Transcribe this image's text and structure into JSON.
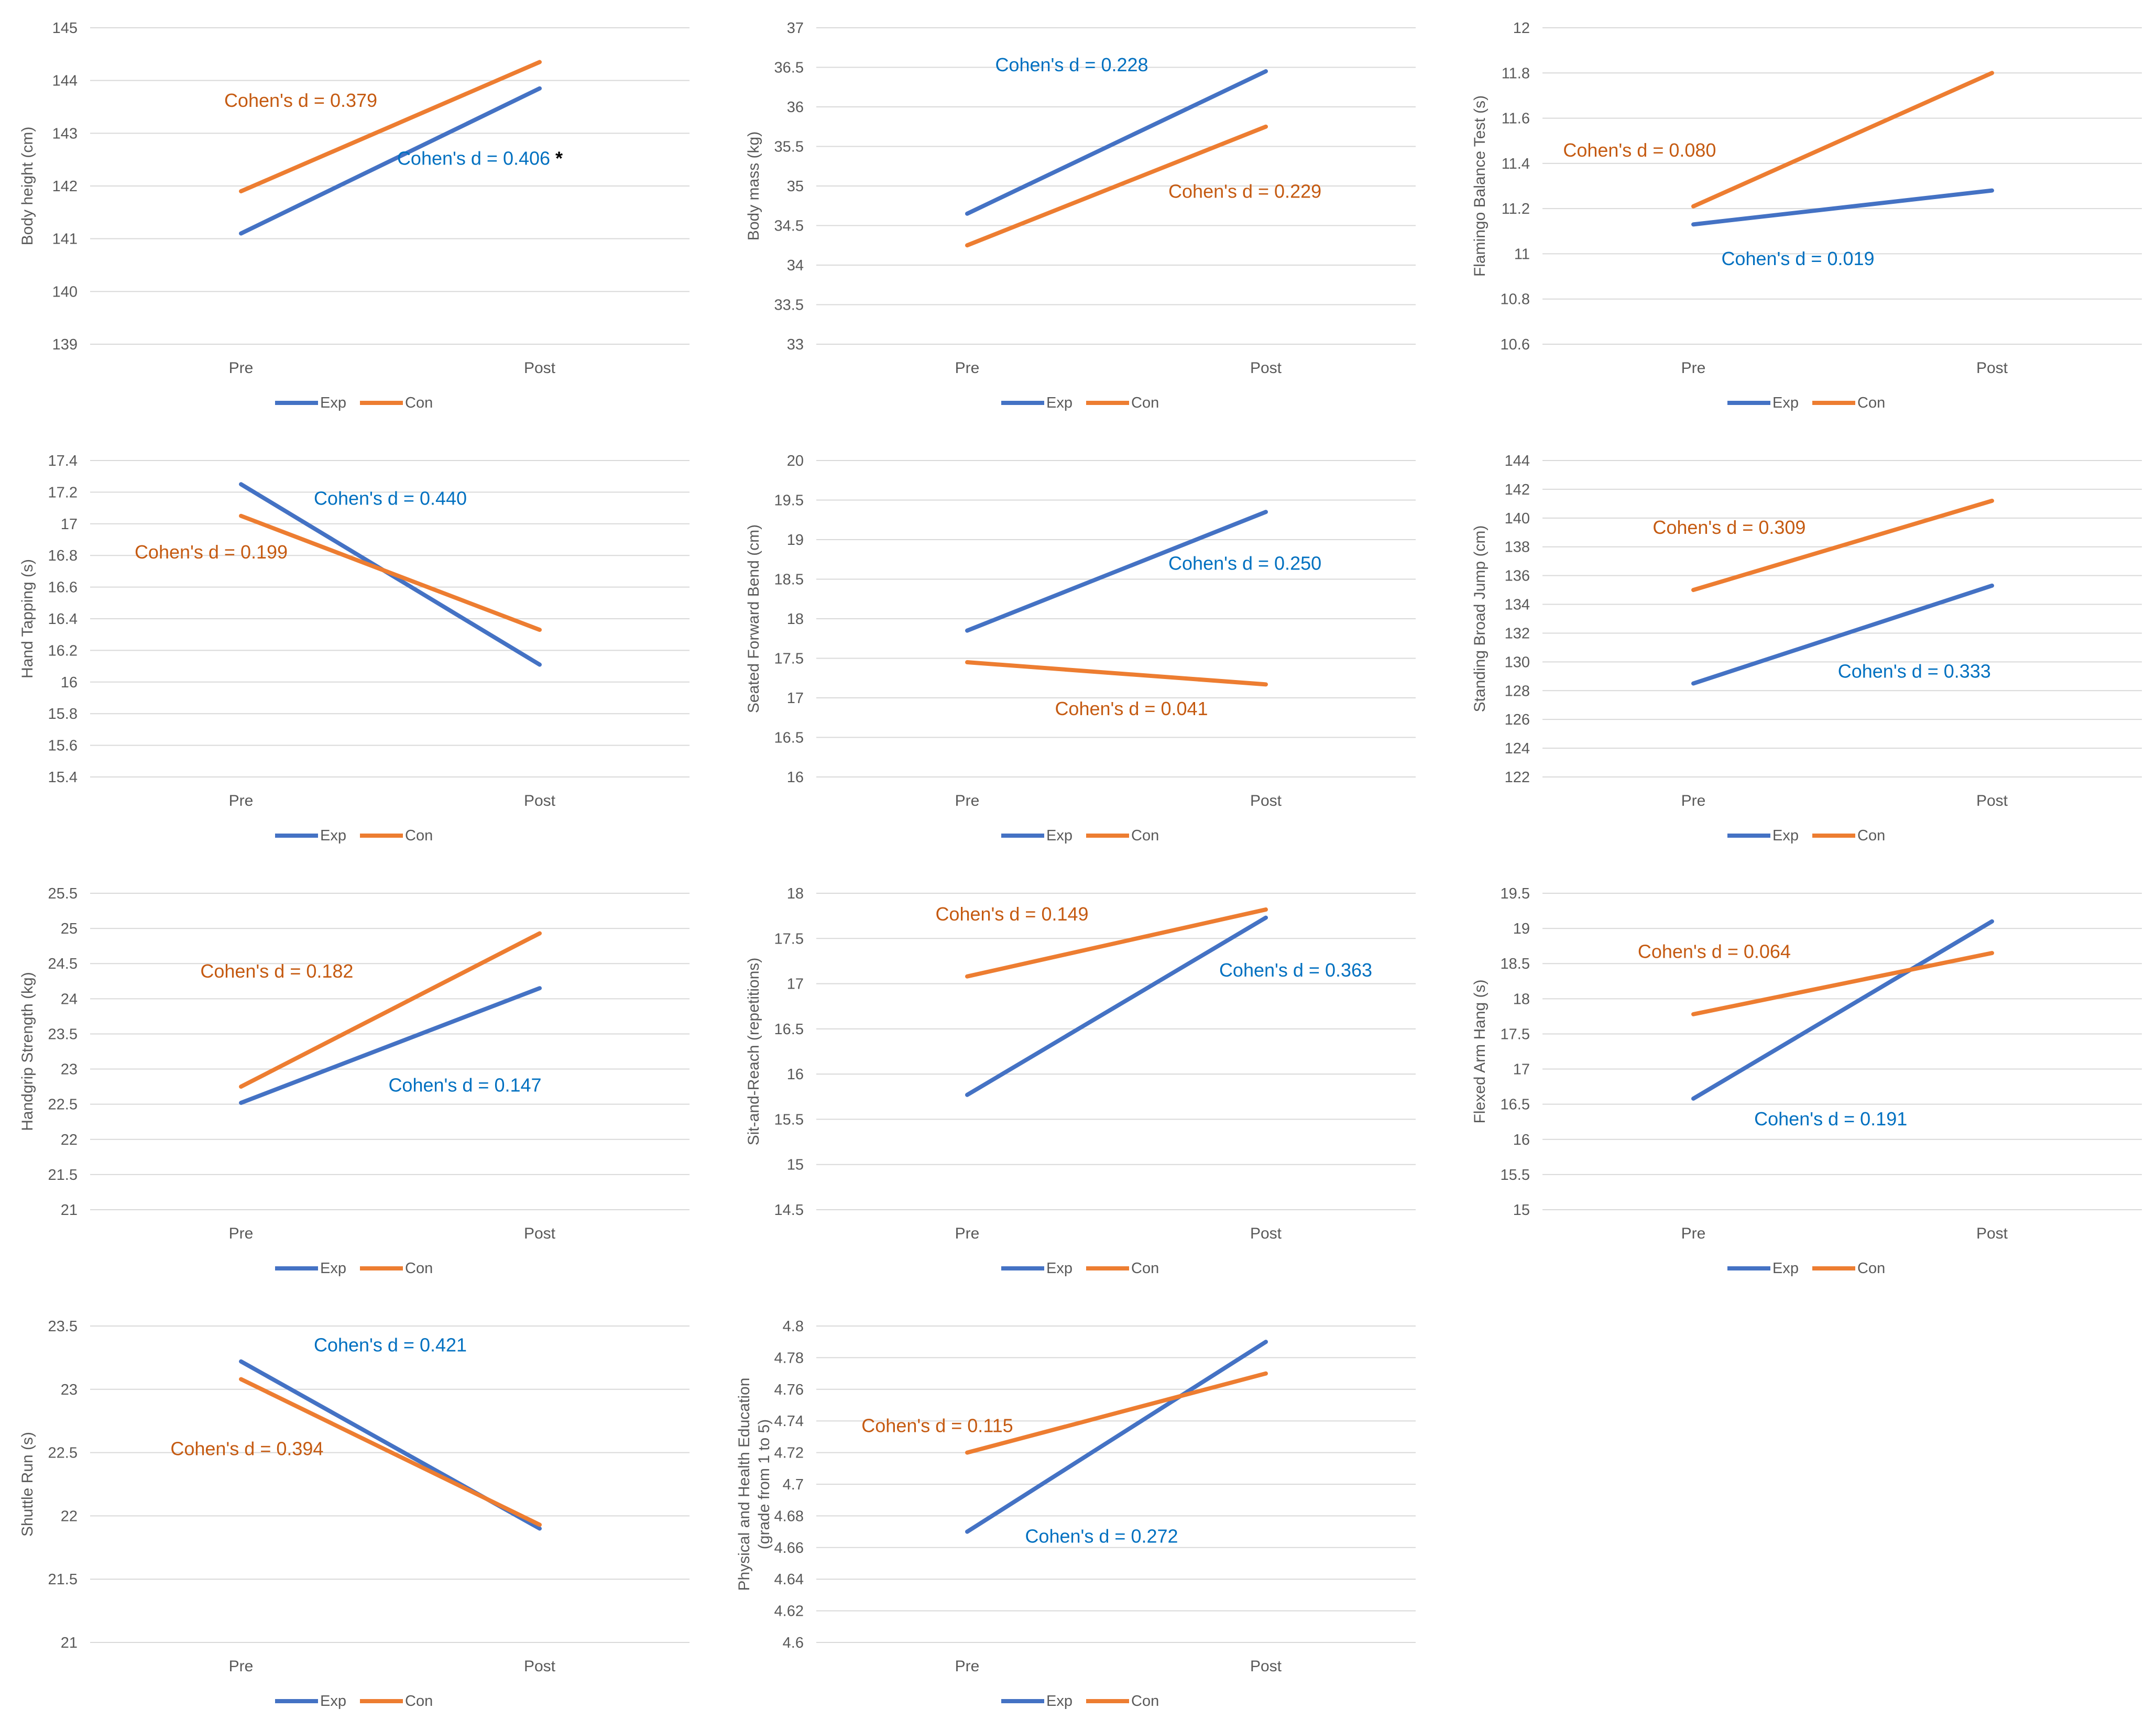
{
  "legend_labels": [
    "Exp",
    "Con"
  ],
  "colors": {
    "exp": "#4472C4",
    "con": "#ED7D31",
    "annot_exp": "#0070C0",
    "annot_con": "#C55A11",
    "grid": "#D9D9D9",
    "tick": "#595959"
  },
  "chart_data": [
    {
      "type": "line",
      "title": "",
      "categories": [
        "Pre",
        "Post"
      ],
      "ylabel": "Body height (cm)",
      "ylim": [
        139,
        145
      ],
      "yticks": [
        "139",
        "140",
        "141",
        "142",
        "143",
        "144",
        "145"
      ],
      "series": [
        {
          "name": "Exp",
          "values": [
            141.1,
            143.85
          ]
        },
        {
          "name": "Con",
          "values": [
            141.9,
            144.35
          ]
        }
      ],
      "annotations": [
        {
          "text": "Cohen's d = 0.379",
          "series": "Con",
          "anchor": [
            0.2,
            143.5
          ]
        },
        {
          "text": "Cohen's d = 0.406",
          "series": "Exp",
          "anchor": [
            0.8,
            142.4
          ],
          "marker": "*"
        }
      ]
    },
    {
      "type": "line",
      "title": "",
      "categories": [
        "Pre",
        "Post"
      ],
      "ylabel": "Body mass (kg)",
      "ylim": [
        33,
        37
      ],
      "yticks": [
        "33",
        "33.5",
        "34",
        "34.5",
        "35",
        "35.5",
        "36",
        "36.5",
        "37"
      ],
      "series": [
        {
          "name": "Exp",
          "values": [
            34.65,
            36.45
          ]
        },
        {
          "name": "Con",
          "values": [
            34.25,
            35.75
          ]
        }
      ],
      "annotations": [
        {
          "text": "Cohen's d = 0.228",
          "series": "Exp",
          "anchor": [
            0.35,
            36.45
          ]
        },
        {
          "text": "Cohen's d = 0.229",
          "series": "Con",
          "anchor": [
            0.93,
            34.85
          ]
        }
      ]
    },
    {
      "type": "line",
      "title": "",
      "categories": [
        "Pre",
        "Post"
      ],
      "ylabel": "Flamingo Balance Test (s)",
      "ylim": [
        10.6,
        12
      ],
      "yticks": [
        "10.6",
        "10.8",
        "11",
        "11.2",
        "11.4",
        "11.6",
        "11.8",
        "12"
      ],
      "series": [
        {
          "name": "Exp",
          "values": [
            11.13,
            11.28
          ]
        },
        {
          "name": "Con",
          "values": [
            11.21,
            11.8
          ]
        }
      ],
      "annotations": [
        {
          "text": "Cohen's d = 0.080",
          "series": "Con",
          "anchor": [
            -0.18,
            11.43
          ]
        },
        {
          "text": "Cohen's d = 0.019",
          "series": "Exp",
          "anchor": [
            0.35,
            10.95
          ]
        }
      ]
    },
    {
      "type": "line",
      "title": "",
      "categories": [
        "Pre",
        "Post"
      ],
      "ylabel": "Hand Tapping (s)",
      "ylim": [
        15.4,
        17.4
      ],
      "yticks": [
        "15.4",
        "15.6",
        "15.8",
        "16",
        "16.2",
        "16.4",
        "16.6",
        "16.8",
        "17",
        "17.2",
        "17.4"
      ],
      "series": [
        {
          "name": "Exp",
          "values": [
            17.25,
            16.11
          ]
        },
        {
          "name": "Con",
          "values": [
            17.05,
            16.33
          ]
        }
      ],
      "annotations": [
        {
          "text": "Cohen's d = 0.440",
          "series": "Exp",
          "anchor": [
            0.5,
            17.12
          ]
        },
        {
          "text": "Cohen's d = 0.199",
          "series": "Con",
          "anchor": [
            -0.1,
            16.78
          ]
        }
      ]
    },
    {
      "type": "line",
      "title": "",
      "categories": [
        "Pre",
        "Post"
      ],
      "ylabel": "Seated Forward Bend (cm)",
      "ylim": [
        16,
        20
      ],
      "yticks": [
        "16",
        "16.5",
        "17",
        "17.5",
        "18",
        "18.5",
        "19",
        "19.5",
        "20"
      ],
      "series": [
        {
          "name": "Exp",
          "values": [
            17.85,
            19.35
          ]
        },
        {
          "name": "Con",
          "values": [
            17.45,
            17.17
          ]
        }
      ],
      "annotations": [
        {
          "text": "Cohen's d = 0.250",
          "series": "Exp",
          "anchor": [
            0.93,
            18.62
          ]
        },
        {
          "text": "Cohen's d = 0.041",
          "series": "Con",
          "anchor": [
            0.55,
            16.78
          ]
        }
      ]
    },
    {
      "type": "line",
      "title": "",
      "categories": [
        "Pre",
        "Post"
      ],
      "ylabel": "Standing Broad Jump (cm)",
      "ylim": [
        122,
        144
      ],
      "yticks": [
        "122",
        "124",
        "126",
        "128",
        "130",
        "132",
        "134",
        "136",
        "138",
        "140",
        "142",
        "144"
      ],
      "series": [
        {
          "name": "Exp",
          "values": [
            128.5,
            135.3
          ]
        },
        {
          "name": "Con",
          "values": [
            135,
            141.2
          ]
        }
      ],
      "annotations": [
        {
          "text": "Cohen's d = 0.309",
          "series": "Con",
          "anchor": [
            0.12,
            138.9
          ]
        },
        {
          "text": "Cohen's d = 0.333",
          "series": "Exp",
          "anchor": [
            0.74,
            128.9
          ]
        }
      ]
    },
    {
      "type": "line",
      "title": "",
      "categories": [
        "Pre",
        "Post"
      ],
      "ylabel": "Handgrip Strength (kg)",
      "ylim": [
        21,
        25.5
      ],
      "yticks": [
        "21",
        "21.5",
        "22",
        "22.5",
        "23",
        "23.5",
        "24",
        "24.5",
        "25",
        "25.5"
      ],
      "series": [
        {
          "name": "Exp",
          "values": [
            22.52,
            24.15
          ]
        },
        {
          "name": "Con",
          "values": [
            22.75,
            24.93
          ]
        }
      ],
      "annotations": [
        {
          "text": "Cohen's d = 0.182",
          "series": "Con",
          "anchor": [
            0.12,
            24.3
          ]
        },
        {
          "text": "Cohen's d = 0.147",
          "series": "Exp",
          "anchor": [
            0.75,
            22.68
          ]
        }
      ]
    },
    {
      "type": "line",
      "title": "",
      "categories": [
        "Pre",
        "Post"
      ],
      "ylabel": "Sit-and-Reach (repetitions)",
      "ylim": [
        14.5,
        18
      ],
      "yticks": [
        "14.5",
        "15",
        "15.5",
        "16",
        "16.5",
        "17",
        "17.5",
        "18"
      ],
      "series": [
        {
          "name": "Exp",
          "values": [
            15.77,
            17.73
          ]
        },
        {
          "name": "Con",
          "values": [
            17.08,
            17.82
          ]
        }
      ],
      "annotations": [
        {
          "text": "Cohen's d = 0.149",
          "series": "Con",
          "anchor": [
            0.15,
            17.7
          ]
        },
        {
          "text": "Cohen's d = 0.363",
          "series": "Exp",
          "anchor": [
            1.1,
            17.08
          ]
        }
      ]
    },
    {
      "type": "line",
      "title": "",
      "categories": [
        "Pre",
        "Post"
      ],
      "ylabel": "Flexed Arm Hang (s)",
      "ylim": [
        15,
        19.5
      ],
      "yticks": [
        "15",
        "15.5",
        "16",
        "16.5",
        "17",
        "17.5",
        "18",
        "18.5",
        "19",
        "19.5"
      ],
      "series": [
        {
          "name": "Exp",
          "values": [
            16.58,
            19.1
          ]
        },
        {
          "name": "Con",
          "values": [
            17.78,
            18.65
          ]
        }
      ],
      "annotations": [
        {
          "text": "Cohen's d = 0.064",
          "series": "Con",
          "anchor": [
            0.07,
            18.58
          ]
        },
        {
          "text": "Cohen's d = 0.191",
          "series": "Exp",
          "anchor": [
            0.46,
            16.2
          ]
        }
      ]
    },
    {
      "type": "line",
      "title": "",
      "categories": [
        "Pre",
        "Post"
      ],
      "ylabel": "Shuttle Run (s)",
      "ylim": [
        21,
        23.5
      ],
      "yticks": [
        "21",
        "21.5",
        "22",
        "22.5",
        "23",
        "23.5"
      ],
      "series": [
        {
          "name": "Exp",
          "values": [
            23.22,
            21.9
          ]
        },
        {
          "name": "Con",
          "values": [
            23.08,
            21.93
          ]
        }
      ],
      "annotations": [
        {
          "text": "Cohen's d = 0.421",
          "series": "Exp",
          "anchor": [
            0.5,
            23.3
          ]
        },
        {
          "text": "Cohen's d = 0.394",
          "series": "Con",
          "anchor": [
            0.02,
            22.48
          ]
        }
      ]
    },
    {
      "type": "line",
      "title": "",
      "categories": [
        "Pre",
        "Post"
      ],
      "ylabel": "Physical and Health Education (grade from 1 to 5)",
      "ylim": [
        4.6,
        4.8
      ],
      "yticks": [
        "4.6",
        "4.62",
        "4.64",
        "4.66",
        "4.68",
        "4.7",
        "4.72",
        "4.74",
        "4.76",
        "4.78",
        "4.8"
      ],
      "series": [
        {
          "name": "Exp",
          "values": [
            4.67,
            4.79
          ]
        },
        {
          "name": "Con",
          "values": [
            4.72,
            4.77
          ]
        }
      ],
      "annotations": [
        {
          "text": "Cohen's d = 0.115",
          "series": "Con",
          "anchor": [
            -0.1,
            4.733
          ]
        },
        {
          "text": "Cohen's d = 0.272",
          "series": "Exp",
          "anchor": [
            0.45,
            4.663
          ]
        }
      ]
    }
  ]
}
